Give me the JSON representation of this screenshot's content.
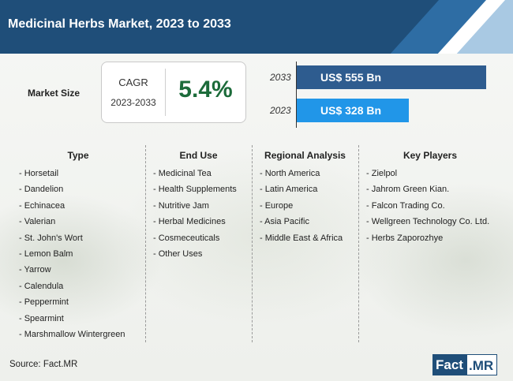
{
  "header": {
    "title": "Medicinal Herbs Market, 2023 to 2033"
  },
  "market_size": {
    "label": "Market Size",
    "cagr_label": "CAGR",
    "cagr_period": "2023-2033",
    "cagr_value": "5.4%"
  },
  "chart_data": {
    "type": "bar",
    "orientation": "horizontal",
    "categories": [
      "2033",
      "2023"
    ],
    "values": [
      555,
      328
    ],
    "unit": "US$ Bn",
    "value_labels": [
      "US$ 555 Bn",
      "US$ 328 Bn"
    ],
    "colors": [
      "#2e5c8f",
      "#2196e8"
    ]
  },
  "columns": [
    {
      "heading": "Type",
      "items": [
        "- Horsetail",
        "- Dandelion",
        "- Echinacea",
        "- Valerian",
        "- St. John's Wort",
        "- Lemon Balm",
        "- Yarrow",
        "- Calendula",
        "- Peppermint",
        "- Spearmint",
        "- Marshmallow Wintergreen"
      ]
    },
    {
      "heading": "End Use",
      "items": [
        "- Medicinal Tea",
        "- Health Supplements",
        "- Nutritive Jam",
        "- Herbal Medicines",
        "- Cosmeceuticals",
        "- Other Uses"
      ]
    },
    {
      "heading": "Regional Analysis",
      "items": [
        "- North America",
        "- Latin America",
        "- Europe",
        "- Asia Pacific",
        "- Middle East & Africa"
      ]
    },
    {
      "heading": "Key Players",
      "items": [
        "- Zielpol",
        "- Jahrom Green Kian.",
        "- Falcon Trading Co.",
        "- Wellgreen Technology Co. Ltd.",
        "- Herbs Zaporozhye"
      ]
    }
  ],
  "footer": {
    "source": "Source: Fact.MR",
    "logo_part1": "Fact",
    "logo_part2": ".MR"
  }
}
